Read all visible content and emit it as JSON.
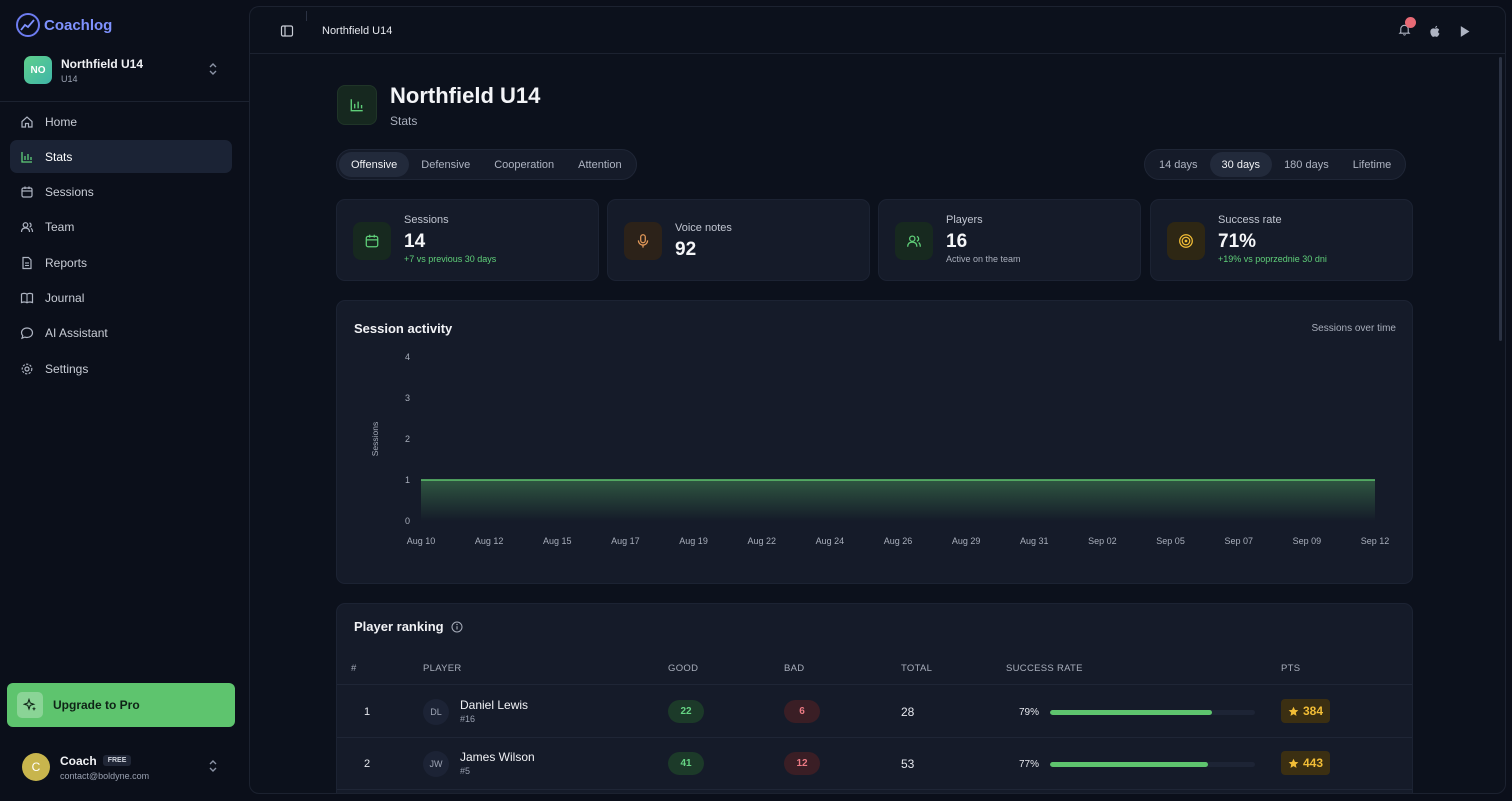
{
  "brand": {
    "name": "Coachlog"
  },
  "team": {
    "initials": "NO",
    "name": "Northfield U14",
    "subtitle": "U14"
  },
  "nav": [
    {
      "label": "Home",
      "icon": "home-icon"
    },
    {
      "label": "Stats",
      "icon": "bar-chart-icon",
      "active": true
    },
    {
      "label": "Sessions",
      "icon": "calendar-icon"
    },
    {
      "label": "Team",
      "icon": "users-icon"
    },
    {
      "label": "Reports",
      "icon": "file-icon"
    },
    {
      "label": "Journal",
      "icon": "book-icon"
    },
    {
      "label": "AI Assistant",
      "icon": "chat-icon"
    },
    {
      "label": "Settings",
      "icon": "gear-icon"
    }
  ],
  "upgrade": {
    "label": "Upgrade to Pro"
  },
  "user": {
    "initial": "C",
    "name": "Coach",
    "plan": "FREE",
    "email": "contact@boldyne.com"
  },
  "topbar": {
    "breadcrumb": "Northfield U14"
  },
  "page": {
    "title": "Northfield U14",
    "subtitle": "Stats"
  },
  "metric_tabs": [
    "Offensive",
    "Defensive",
    "Cooperation",
    "Attention"
  ],
  "metric_tab_active": 0,
  "range_tabs": [
    "14 days",
    "30 days",
    "180 days",
    "Lifetime"
  ],
  "range_tab_active": 1,
  "kpis": [
    {
      "label": "Sessions",
      "value": "14",
      "note": "+7 vs previous 30 days",
      "note_style": "green",
      "icon": "calendar-icon",
      "color": "#5fcf79"
    },
    {
      "label": "Voice notes",
      "value": "92",
      "note": "",
      "note_style": "gray",
      "icon": "microphone-icon",
      "color": "#e49a5a"
    },
    {
      "label": "Players",
      "value": "16",
      "note": "Active on the team",
      "note_style": "gray",
      "icon": "users-icon",
      "color": "#5fcf79"
    },
    {
      "label": "Success rate",
      "value": "71%",
      "note": "+19% vs poprzednie 30 dni",
      "note_style": "green",
      "icon": "target-icon",
      "color": "#f2bd36"
    }
  ],
  "activity": {
    "title": "Session activity",
    "right_label": "Sessions over time"
  },
  "chart_data": {
    "type": "area",
    "ylabel": "Sessions",
    "ylim": [
      0,
      4
    ],
    "yticks": [
      0,
      1,
      2,
      3,
      4
    ],
    "x": [
      "Aug 10",
      "Aug 12",
      "Aug 15",
      "Aug 17",
      "Aug 19",
      "Aug 22",
      "Aug 24",
      "Aug 26",
      "Aug 29",
      "Aug 31",
      "Sep 02",
      "Sep 05",
      "Sep 07",
      "Sep 09",
      "Sep 12"
    ],
    "series": [
      {
        "values": [
          1,
          1,
          1,
          1,
          1,
          1,
          1,
          1,
          1,
          1,
          1,
          1,
          1,
          1,
          1
        ]
      }
    ],
    "grid": false,
    "legend": "none"
  },
  "ranking": {
    "title": "Player ranking",
    "headers": {
      "rank": "#",
      "player": "PLAYER",
      "good": "GOOD",
      "bad": "BAD",
      "total": "TOTAL",
      "success": "SUCCESS RATE",
      "pts": "PTS"
    },
    "rows": [
      {
        "rank": "1",
        "initials": "DL",
        "name": "Daniel Lewis",
        "number": "#16",
        "good": "22",
        "bad": "6",
        "total": "28",
        "success": "79%",
        "success_value": 79,
        "pts": "384"
      },
      {
        "rank": "2",
        "initials": "JW",
        "name": "James Wilson",
        "number": "#5",
        "good": "41",
        "bad": "12",
        "total": "53",
        "success": "77%",
        "success_value": 77,
        "pts": "443"
      }
    ]
  }
}
